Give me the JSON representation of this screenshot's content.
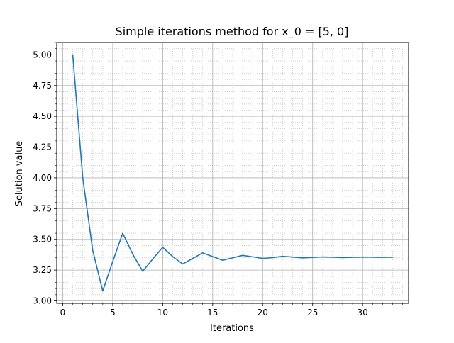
{
  "chart_data": {
    "type": "line",
    "title": "Simple iterations method for x_0 = [5, 0]",
    "xlabel": "Iterations",
    "ylabel": "Solution value",
    "xlim": [
      -0.6,
      34.6
    ],
    "ylim": [
      2.98,
      5.1
    ],
    "grid": "major and minor",
    "line_color": "#1f77b4",
    "major_grid_color": "#b0b0b0",
    "minor_grid_color": "#c8c8c8",
    "x_ticks": [
      0,
      5,
      10,
      15,
      20,
      25,
      30
    ],
    "x_tick_labels": [
      "0",
      "5",
      "10",
      "15",
      "20",
      "25",
      "30"
    ],
    "y_ticks": [
      3.0,
      3.25,
      3.5,
      3.75,
      4.0,
      4.25,
      4.5,
      4.75,
      5.0
    ],
    "y_tick_labels": [
      "3.00",
      "3.25",
      "3.50",
      "3.75",
      "4.00",
      "4.25",
      "4.50",
      "4.75",
      "5.00"
    ],
    "series": [
      {
        "x": [
          1,
          2,
          3,
          4,
          5,
          6,
          7,
          8,
          9,
          10,
          11,
          12,
          13,
          14,
          15,
          16,
          17,
          18,
          19,
          20,
          21,
          22,
          23,
          24,
          25,
          26,
          27,
          28,
          29,
          30,
          31,
          32,
          33
        ],
        "y": [
          5.0,
          4.0,
          3.41,
          3.08,
          3.32,
          3.55,
          3.38,
          3.24,
          3.34,
          3.435,
          3.36,
          3.3,
          3.345,
          3.39,
          3.36,
          3.33,
          3.35,
          3.37,
          3.358,
          3.345,
          3.352,
          3.362,
          3.356,
          3.35,
          3.353,
          3.357,
          3.355,
          3.352,
          3.354,
          3.356,
          3.355,
          3.354,
          3.355
        ]
      }
    ]
  }
}
